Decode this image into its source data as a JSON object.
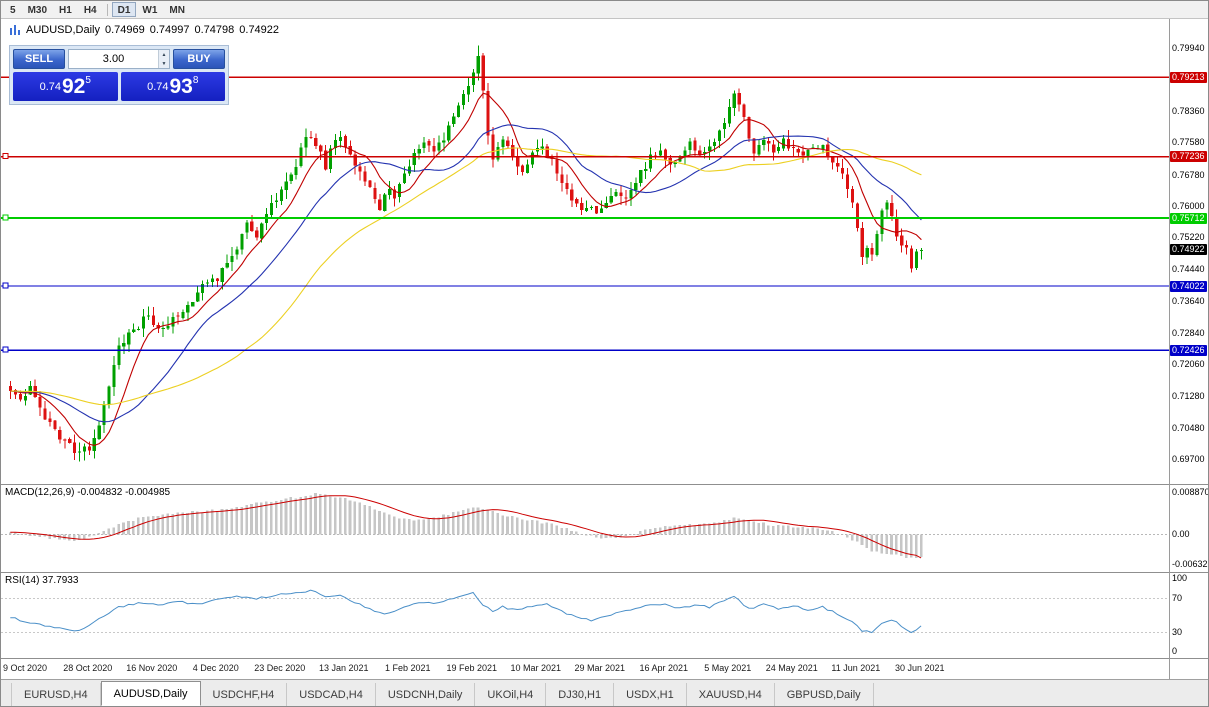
{
  "toolbar": {
    "periods": [
      {
        "label": "5",
        "active": false
      },
      {
        "label": "M30",
        "active": false
      },
      {
        "label": "H1",
        "active": false
      },
      {
        "label": "H4",
        "active": false
      },
      {
        "label": "D1",
        "active": true
      },
      {
        "label": "W1",
        "active": false
      },
      {
        "label": "MN",
        "active": false
      }
    ]
  },
  "chart_header": {
    "symbol": "AUDUSD,Daily",
    "open": "0.74969",
    "high": "0.74997",
    "low": "0.74798",
    "close": "0.74922"
  },
  "trade_panel": {
    "sell_label": "SELL",
    "buy_label": "BUY",
    "lot_value": "3.00",
    "sell_price": {
      "base": "0.74",
      "pips": "92",
      "pip_sup": "5"
    },
    "buy_price": {
      "base": "0.74",
      "pips": "93",
      "pip_sup": "8"
    }
  },
  "colors": {
    "candle_up": "#00a000",
    "candle_down": "#dd1111",
    "accent_blue": "#1c2ed2"
  },
  "chart_data": [
    {
      "type": "candlestick",
      "title": "AUDUSD,Daily",
      "x_labels": [
        "9 Oct 2020",
        "28 Oct 2020",
        "16 Nov 2020",
        "4 Dec 2020",
        "23 Dec 2020",
        "13 Jan 2021",
        "1 Feb 2021",
        "19 Feb 2021",
        "10 Mar 2021",
        "29 Mar 2021",
        "16 Apr 2021",
        "5 May 2021",
        "24 May 2021",
        "11 Jun 2021",
        "30 Jun 2021"
      ],
      "y_ticks": [
        "0.79940",
        "0.78360",
        "0.77580",
        "0.76780",
        "0.76000",
        "0.75220",
        "0.74440",
        "0.73640",
        "0.72840",
        "0.72060",
        "0.71280",
        "0.70480",
        "0.69700"
      ],
      "y_tick_values": [
        0.7994,
        0.7836,
        0.7758,
        0.7678,
        0.76,
        0.7522,
        0.7444,
        0.7364,
        0.7284,
        0.7206,
        0.7128,
        0.7048,
        0.697
      ],
      "ylim": [
        0.691,
        0.8066
      ],
      "levels": [
        {
          "price": 0.79213,
          "label": "0.79213",
          "color": "#cc0000",
          "marker": false,
          "width": 1.2
        },
        {
          "price": 0.77236,
          "label": "0.77236",
          "color": "#cc0000",
          "marker": true,
          "width": 1.2
        },
        {
          "price": 0.75712,
          "label": "0.75712",
          "color": "#00cc00",
          "marker": true,
          "width": 2
        },
        {
          "price": 0.74022,
          "label": "0.74022",
          "color": "#0000c8",
          "marker": true,
          "width": 1.2
        },
        {
          "price": 0.72426,
          "label": "0.72426",
          "color": "#0000c8",
          "marker": true,
          "width": 1.2
        }
      ],
      "current_price": {
        "value": 0.74922,
        "label": "0.74922",
        "color": "#000000"
      },
      "candle_count": 186,
      "price_waypoints": [
        [
          0,
          0.715
        ],
        [
          2,
          0.7118
        ],
        [
          4,
          0.7155
        ],
        [
          7,
          0.7078
        ],
        [
          10,
          0.7028
        ],
        [
          13,
          0.6992
        ],
        [
          16,
          0.6998
        ],
        [
          18,
          0.7062
        ],
        [
          20,
          0.716
        ],
        [
          22,
          0.7252
        ],
        [
          24,
          0.7286
        ],
        [
          26,
          0.7302
        ],
        [
          28,
          0.7332
        ],
        [
          30,
          0.729
        ],
        [
          33,
          0.7322
        ],
        [
          36,
          0.7356
        ],
        [
          39,
          0.74
        ],
        [
          42,
          0.7422
        ],
        [
          45,
          0.7472
        ],
        [
          48,
          0.756
        ],
        [
          50,
          0.7522
        ],
        [
          52,
          0.758
        ],
        [
          54,
          0.7622
        ],
        [
          56,
          0.7662
        ],
        [
          58,
          0.77
        ],
        [
          60,
          0.778
        ],
        [
          62,
          0.7758
        ],
        [
          64,
          0.77
        ],
        [
          65,
          0.7746
        ],
        [
          67,
          0.7772
        ],
        [
          69,
          0.7722
        ],
        [
          71,
          0.7682
        ],
        [
          73,
          0.7642
        ],
        [
          75,
          0.76
        ],
        [
          77,
          0.765
        ],
        [
          78,
          0.7622
        ],
        [
          80,
          0.7682
        ],
        [
          82,
          0.7732
        ],
        [
          84,
          0.7762
        ],
        [
          86,
          0.7742
        ],
        [
          88,
          0.7772
        ],
        [
          90,
          0.7822
        ],
        [
          92,
          0.7872
        ],
        [
          94,
          0.793
        ],
        [
          95,
          0.7966
        ],
        [
          96,
          0.788
        ],
        [
          97,
          0.7782
        ],
        [
          98,
          0.7722
        ],
        [
          100,
          0.7762
        ],
        [
          102,
          0.7722
        ],
        [
          104,
          0.7692
        ],
        [
          106,
          0.7732
        ],
        [
          108,
          0.7752
        ],
        [
          110,
          0.7712
        ],
        [
          112,
          0.7662
        ],
        [
          114,
          0.7622
        ],
        [
          116,
          0.7592
        ],
        [
          117,
          0.7602
        ],
        [
          119,
          0.7582
        ],
        [
          121,
          0.7612
        ],
        [
          123,
          0.7642
        ],
        [
          125,
          0.7622
        ],
        [
          127,
          0.7662
        ],
        [
          129,
          0.7702
        ],
        [
          130,
          0.7722
        ],
        [
          132,
          0.7742
        ],
        [
          134,
          0.7702
        ],
        [
          136,
          0.7722
        ],
        [
          138,
          0.7762
        ],
        [
          140,
          0.7722
        ],
        [
          142,
          0.7742
        ],
        [
          144,
          0.7782
        ],
        [
          146,
          0.7846
        ],
        [
          147,
          0.7882
        ],
        [
          149,
          0.7822
        ],
        [
          151,
          0.7732
        ],
        [
          153,
          0.7772
        ],
        [
          155,
          0.7742
        ],
        [
          157,
          0.7762
        ],
        [
          159,
          0.7742
        ],
        [
          161,
          0.7722
        ],
        [
          163,
          0.7746
        ],
        [
          165,
          0.7752
        ],
        [
          167,
          0.7702
        ],
        [
          169,
          0.7682
        ],
        [
          170,
          0.7652
        ],
        [
          171,
          0.7612
        ],
        [
          172,
          0.7552
        ],
        [
          173,
          0.7482
        ],
        [
          174,
          0.7502
        ],
        [
          175,
          0.7476
        ],
        [
          176,
          0.7532
        ],
        [
          177,
          0.7582
        ],
        [
          178,
          0.7602
        ],
        [
          179,
          0.7572
        ],
        [
          180,
          0.7532
        ],
        [
          181,
          0.7502
        ],
        [
          182,
          0.7492
        ],
        [
          183,
          0.7446
        ],
        [
          184,
          0.7482
        ],
        [
          185,
          0.74922
        ]
      ],
      "wick_overrides": [
        {
          "i": 95,
          "high": 0.8
        },
        {
          "i": 13,
          "low": 0.697
        },
        {
          "i": 183,
          "low": 0.7443
        }
      ],
      "moving_averages": [
        {
          "period": 8,
          "color": "#c00000"
        },
        {
          "period": 20,
          "color": "#2433b0"
        },
        {
          "period": 45,
          "color": "#ecd022"
        }
      ]
    },
    {
      "type": "bar",
      "name": "MACD",
      "label_text": "MACD(12,26,9) -0.004832 -0.004985",
      "current_main": -0.004832,
      "current_signal": -0.004985,
      "y_ticks": [
        "0.008870",
        "0.00",
        "-0.00632"
      ],
      "y_tick_values": [
        0.00887,
        0,
        -0.00632
      ],
      "ylim": [
        -0.008,
        0.01056
      ],
      "hist_color": "#c6c6c6",
      "signal_color": "#cc0000",
      "waypoints": [
        [
          0,
          0.0005
        ],
        [
          8,
          -0.0008
        ],
        [
          14,
          -0.0013
        ],
        [
          20,
          0.0012
        ],
        [
          26,
          0.0035
        ],
        [
          34,
          0.0046
        ],
        [
          42,
          0.0052
        ],
        [
          50,
          0.0066
        ],
        [
          56,
          0.0076
        ],
        [
          62,
          0.0086
        ],
        [
          68,
          0.0079
        ],
        [
          74,
          0.0056
        ],
        [
          78,
          0.0036
        ],
        [
          82,
          0.003
        ],
        [
          86,
          0.0036
        ],
        [
          90,
          0.0046
        ],
        [
          95,
          0.006
        ],
        [
          99,
          0.0046
        ],
        [
          104,
          0.0031
        ],
        [
          108,
          0.0026
        ],
        [
          112,
          0.0016
        ],
        [
          116,
          0.0001
        ],
        [
          120,
          -0.001
        ],
        [
          124,
          -0.0007
        ],
        [
          128,
          0.0006
        ],
        [
          132,
          0.0016
        ],
        [
          136,
          0.0021
        ],
        [
          140,
          0.0021
        ],
        [
          144,
          0.0026
        ],
        [
          147,
          0.0036
        ],
        [
          151,
          0.0029
        ],
        [
          155,
          0.0019
        ],
        [
          159,
          0.0016
        ],
        [
          163,
          0.0013
        ],
        [
          167,
          0.0006
        ],
        [
          171,
          -0.0011
        ],
        [
          174,
          -0.0031
        ],
        [
          177,
          -0.0039
        ],
        [
          180,
          -0.0043
        ],
        [
          183,
          -0.005
        ],
        [
          185,
          -0.0048
        ]
      ]
    },
    {
      "type": "line",
      "name": "RSI",
      "label_text": "RSI(14) 37.7933",
      "current_value": 37.7933,
      "y_ticks": [
        "100",
        "70",
        "30",
        "0"
      ],
      "y_tick_values": [
        100,
        70,
        30,
        0
      ],
      "ylim": [
        0,
        100
      ],
      "line_color": "#4a8fc8",
      "level_lines": [
        70,
        30
      ],
      "waypoints": [
        [
          0,
          48
        ],
        [
          5,
          40
        ],
        [
          10,
          35
        ],
        [
          14,
          32
        ],
        [
          18,
          46
        ],
        [
          22,
          60
        ],
        [
          26,
          65
        ],
        [
          30,
          62
        ],
        [
          34,
          66
        ],
        [
          38,
          64
        ],
        [
          42,
          68
        ],
        [
          46,
          72
        ],
        [
          50,
          70
        ],
        [
          54,
          74
        ],
        [
          58,
          76
        ],
        [
          61,
          80
        ],
        [
          64,
          72
        ],
        [
          67,
          74
        ],
        [
          70,
          65
        ],
        [
          73,
          58
        ],
        [
          76,
          52
        ],
        [
          78,
          56
        ],
        [
          81,
          62
        ],
        [
          84,
          66
        ],
        [
          87,
          64
        ],
        [
          90,
          70
        ],
        [
          94,
          77
        ],
        [
          96,
          62
        ],
        [
          98,
          55
        ],
        [
          100,
          60
        ],
        [
          103,
          56
        ],
        [
          106,
          61
        ],
        [
          109,
          63
        ],
        [
          112,
          55
        ],
        [
          115,
          48
        ],
        [
          118,
          44
        ],
        [
          121,
          50
        ],
        [
          124,
          54
        ],
        [
          127,
          58
        ],
        [
          130,
          62
        ],
        [
          133,
          64
        ],
        [
          136,
          58
        ],
        [
          139,
          63
        ],
        [
          142,
          60
        ],
        [
          145,
          68
        ],
        [
          147,
          72
        ],
        [
          150,
          58
        ],
        [
          153,
          63
        ],
        [
          156,
          58
        ],
        [
          159,
          61
        ],
        [
          162,
          57
        ],
        [
          165,
          60
        ],
        [
          168,
          52
        ],
        [
          171,
          42
        ],
        [
          173,
          32
        ],
        [
          175,
          30
        ],
        [
          177,
          40
        ],
        [
          179,
          45
        ],
        [
          181,
          38
        ],
        [
          183,
          30
        ],
        [
          185,
          37.79
        ]
      ]
    }
  ],
  "tabs": {
    "items": [
      {
        "label": "EURUSD,H4",
        "active": false
      },
      {
        "label": "AUDUSD,Daily",
        "active": true
      },
      {
        "label": "USDCHF,H4",
        "active": false
      },
      {
        "label": "USDCAD,H4",
        "active": false
      },
      {
        "label": "USDCNH,Daily",
        "active": false
      },
      {
        "label": "UKOil,H4",
        "active": false
      },
      {
        "label": "DJ30,H1",
        "active": false
      },
      {
        "label": "USDX,H1",
        "active": false
      },
      {
        "label": "XAUUSD,H4",
        "active": false
      },
      {
        "label": "GBPUSD,Daily",
        "active": false
      }
    ]
  }
}
